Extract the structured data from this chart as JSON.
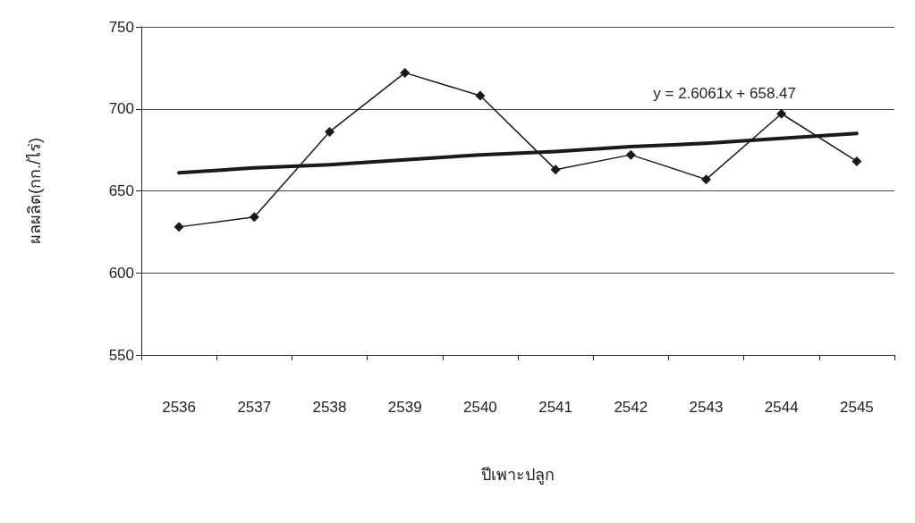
{
  "chart_data": {
    "type": "line",
    "xlabel": "ปีเพาะปลูก",
    "ylabel": "ผลผลิต(กก./ไร่)",
    "categories": [
      "2536",
      "2537",
      "2538",
      "2539",
      "2540",
      "2541",
      "2542",
      "2543",
      "2544",
      "2545"
    ],
    "series": [
      {
        "color": "#1a1a1a",
        "marker": "diamond",
        "values": [
          628,
          634,
          686,
          722,
          708,
          663,
          672,
          657,
          697,
          668
        ]
      },
      {
        "type": "line",
        "color": "#1a1a1a",
        "marker": "none",
        "values": [
          661,
          664,
          666,
          669,
          672,
          674,
          677,
          679,
          682,
          685
        ]
      }
    ],
    "annotations": [
      "y = 2.6061x + 658.47"
    ],
    "ylim": [
      550,
      750
    ],
    "yticks": [
      550,
      600,
      650,
      700,
      750
    ],
    "grid": "y"
  }
}
